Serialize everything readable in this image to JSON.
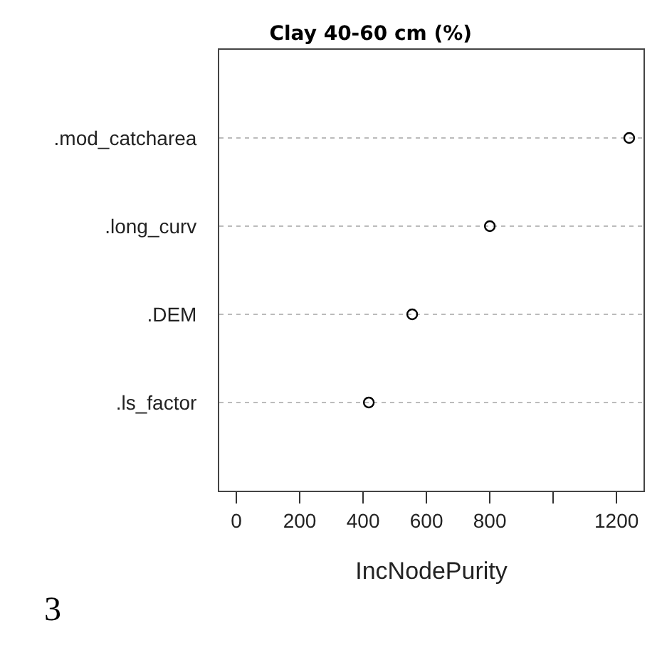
{
  "chart_data": {
    "type": "scatter",
    "title": "Clay 40-60 cm (%)",
    "xlabel": "IncNodePurity",
    "categories": [
      ".mod_catcharea",
      ".long_curv",
      ".DEM",
      ".ls_factor"
    ],
    "orientation": "horizontal",
    "series": [
      {
        "color": "#000000",
        "values": [
          1240,
          800,
          555,
          418
        ]
      }
    ],
    "xlim": [
      -54,
      1285
    ],
    "xticks": [
      0,
      200,
      400,
      600,
      800,
      {
        "value": 1000,
        "label": null
      },
      1200
    ],
    "grid": "y",
    "marker": "circle",
    "legend": false,
    "annotations": [
      "3"
    ]
  }
}
